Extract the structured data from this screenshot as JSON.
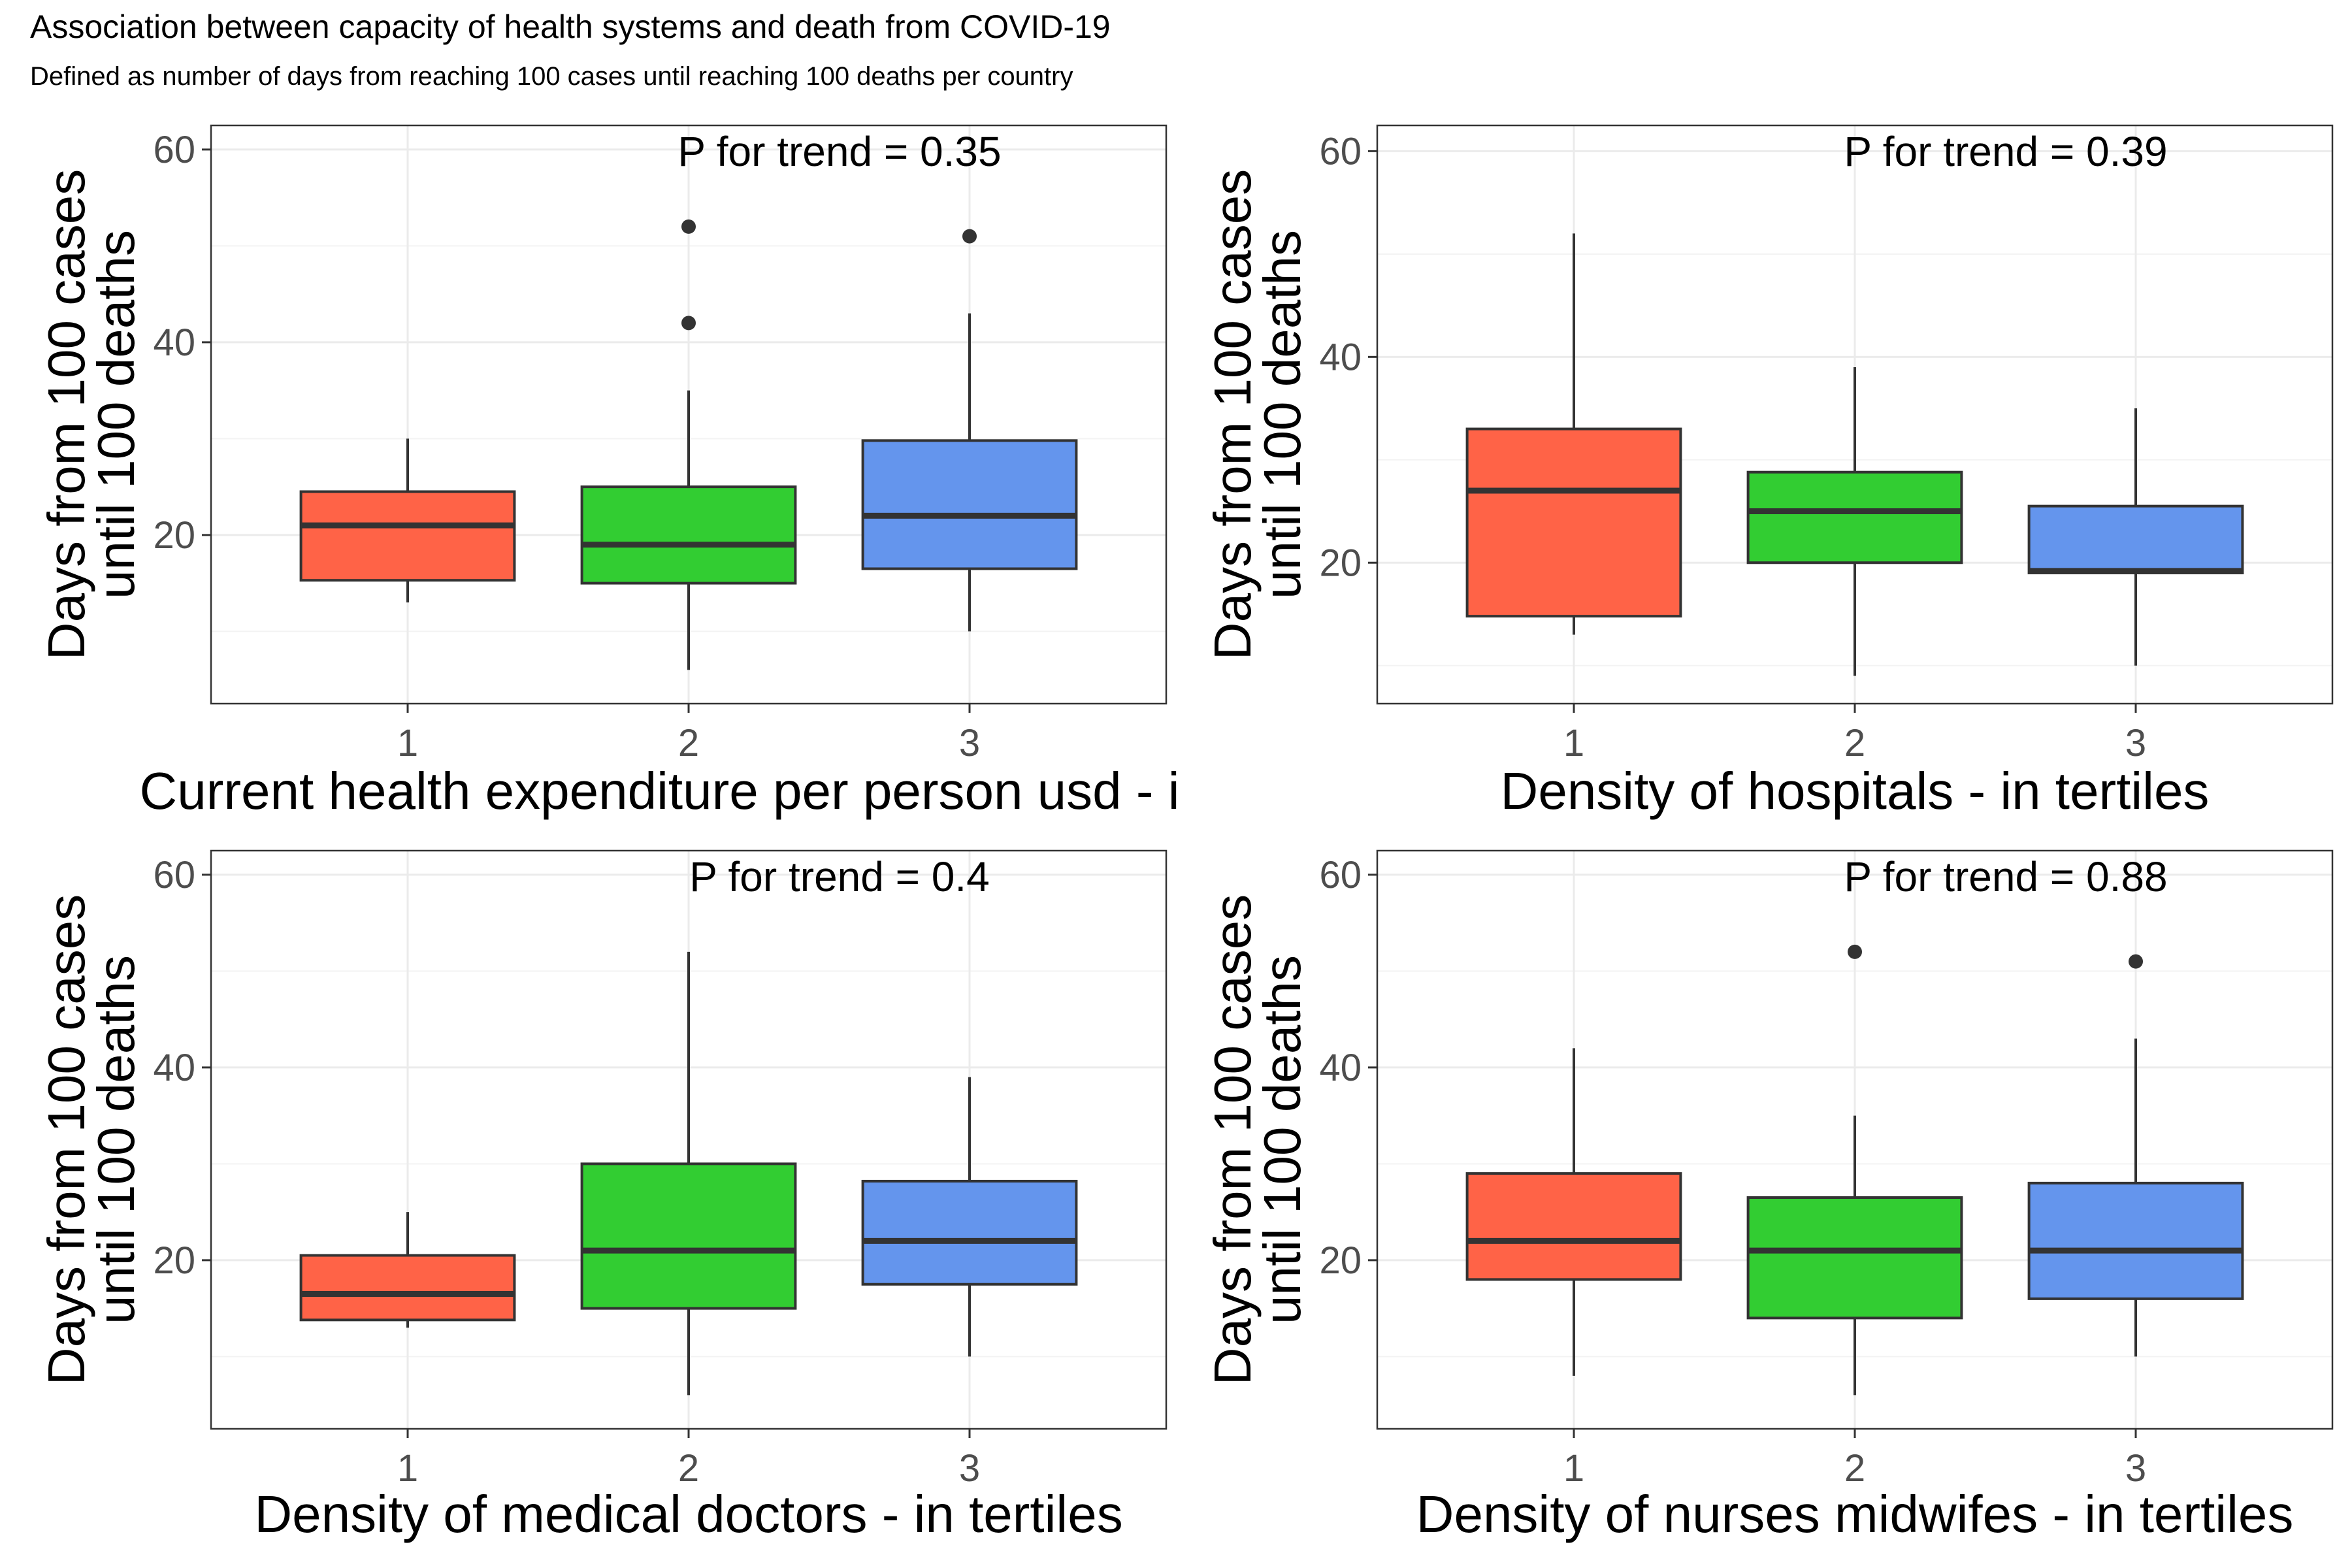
{
  "title": "Association between capacity of health systems and death from COVID-19",
  "subtitle": "Defined as number of days from reaching 100 cases until reaching 100 deaths per country",
  "colors": {
    "tertile_1": "#FF6347",
    "tertile_2": "#32CD32",
    "tertile_3": "#6495ED"
  },
  "chart_data": [
    {
      "type": "box",
      "annotation": "P for trend = 0.35",
      "xlabel": "Current health expenditure per person usd - in t",
      "ylabel": [
        "Days from 100 cases",
        "until 100 deaths"
      ],
      "categories": [
        "1",
        "2",
        "3"
      ],
      "yticks": [
        20,
        40,
        60
      ],
      "ylim": [
        2.5,
        62.5
      ],
      "grid": true,
      "boxes": [
        {
          "category": "1",
          "lower_whisker": 13,
          "q1": 15.3,
          "median": 21,
          "q3": 24.5,
          "upper_whisker": 30,
          "outliers": []
        },
        {
          "category": "2",
          "lower_whisker": 6,
          "q1": 15,
          "median": 19,
          "q3": 25,
          "upper_whisker": 35,
          "outliers": [
            42,
            52
          ]
        },
        {
          "category": "3",
          "lower_whisker": 10,
          "q1": 16.5,
          "median": 22,
          "q3": 29.8,
          "upper_whisker": 43,
          "outliers": [
            51
          ]
        }
      ]
    },
    {
      "type": "box",
      "annotation": "P for trend = 0.39",
      "xlabel": "Density of hospitals - in tertiles",
      "ylabel": [
        "Days from 100 cases",
        "until 100 deaths"
      ],
      "categories": [
        "1",
        "2",
        "3"
      ],
      "yticks": [
        20,
        40,
        60
      ],
      "ylim": [
        6.3,
        62.5
      ],
      "grid": true,
      "boxes": [
        {
          "category": "1",
          "lower_whisker": 13,
          "q1": 14.8,
          "median": 27,
          "q3": 33,
          "upper_whisker": 52,
          "outliers": []
        },
        {
          "category": "2",
          "lower_whisker": 9,
          "q1": 20,
          "median": 25,
          "q3": 28.8,
          "upper_whisker": 39,
          "outliers": []
        },
        {
          "category": "3",
          "lower_whisker": 10,
          "q1": 19,
          "median": 19.2,
          "q3": 25.5,
          "upper_whisker": 35,
          "outliers": []
        }
      ]
    },
    {
      "type": "box",
      "annotation": "P for trend = 0.4",
      "xlabel": "Density of medical doctors - in tertiles",
      "ylabel": [
        "Days from 100 cases",
        "until 100 deaths"
      ],
      "categories": [
        "1",
        "2",
        "3"
      ],
      "yticks": [
        20,
        40,
        60
      ],
      "ylim": [
        2.5,
        62.5
      ],
      "grid": true,
      "boxes": [
        {
          "category": "1",
          "lower_whisker": 13,
          "q1": 13.8,
          "median": 16.5,
          "q3": 20.5,
          "upper_whisker": 25,
          "outliers": []
        },
        {
          "category": "2",
          "lower_whisker": 6,
          "q1": 15,
          "median": 21,
          "q3": 30,
          "upper_whisker": 52,
          "outliers": []
        },
        {
          "category": "3",
          "lower_whisker": 10,
          "q1": 17.5,
          "median": 22,
          "q3": 28.2,
          "upper_whisker": 39,
          "outliers": []
        }
      ]
    },
    {
      "type": "box",
      "annotation": "P for trend = 0.88",
      "xlabel": "Density of nurses midwifes - in tertiles",
      "ylabel": [
        "Days from 100 cases",
        "until 100 deaths"
      ],
      "categories": [
        "1",
        "2",
        "3"
      ],
      "yticks": [
        20,
        40,
        60
      ],
      "ylim": [
        2.5,
        62.5
      ],
      "grid": true,
      "boxes": [
        {
          "category": "1",
          "lower_whisker": 8,
          "q1": 18,
          "median": 22,
          "q3": 29,
          "upper_whisker": 42,
          "outliers": []
        },
        {
          "category": "2",
          "lower_whisker": 6,
          "q1": 14,
          "median": 21,
          "q3": 26.5,
          "upper_whisker": 35,
          "outliers": [
            52
          ]
        },
        {
          "category": "3",
          "lower_whisker": 10,
          "q1": 16,
          "median": 21,
          "q3": 28,
          "upper_whisker": 43,
          "outliers": [
            51
          ]
        }
      ]
    }
  ]
}
